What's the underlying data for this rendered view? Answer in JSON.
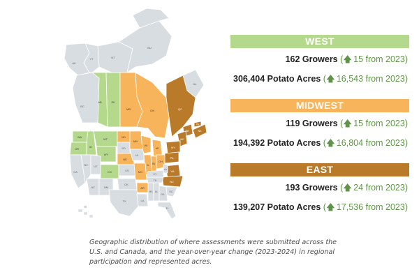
{
  "colors": {
    "west": "#b5d98c",
    "midwest": "#f7b45a",
    "east": "#b97a2a",
    "other": "#d8dde2",
    "border": "#ffffff",
    "change_text": "#5f9448"
  },
  "regions": [
    {
      "key": "west",
      "banner": "WEST",
      "growers": "162 Growers",
      "growers_change": "15 from 2023",
      "acres": "306,404 Potato Acres",
      "acres_change": "16,543 from 2023"
    },
    {
      "key": "midwest",
      "banner": "MIDWEST",
      "growers": "119 Growers",
      "growers_change": "15 from 2023",
      "acres": "194,392 Potato Acres",
      "acres_change": "16,804 from 2023"
    },
    {
      "key": "east",
      "banner": "EAST",
      "growers": "193 Growers",
      "growers_change": "24 from 2023",
      "acres": "139,207 Potato Acres",
      "acres_change": "17,536 from 2023"
    }
  ],
  "map_labels": [
    "NT",
    "NU",
    "YT",
    "BC",
    "AB",
    "SK",
    "MB",
    "ON",
    "QC",
    "NL",
    "NB",
    "NS",
    "PE",
    "WA",
    "OR",
    "ID",
    "MT",
    "WY",
    "CO",
    "ND",
    "SD",
    "NE",
    "KS",
    "MN",
    "IA",
    "WI",
    "MI",
    "IL",
    "IN",
    "OH",
    "MO",
    "NY",
    "PA",
    "VA",
    "NC",
    "ME",
    "CA",
    "NV",
    "UT",
    "AZ",
    "NM",
    "TX",
    "OK",
    "AR",
    "KY",
    "TN",
    "MS",
    "AL",
    "GA",
    "SC",
    "FL",
    "WV",
    "LA",
    "AK",
    "HI"
  ],
  "caption": "Geographic distribution of where assessments were submitted across the U.S. and Canada, and the year-over-year change (2023-2024) in regional participation and represented acres."
}
